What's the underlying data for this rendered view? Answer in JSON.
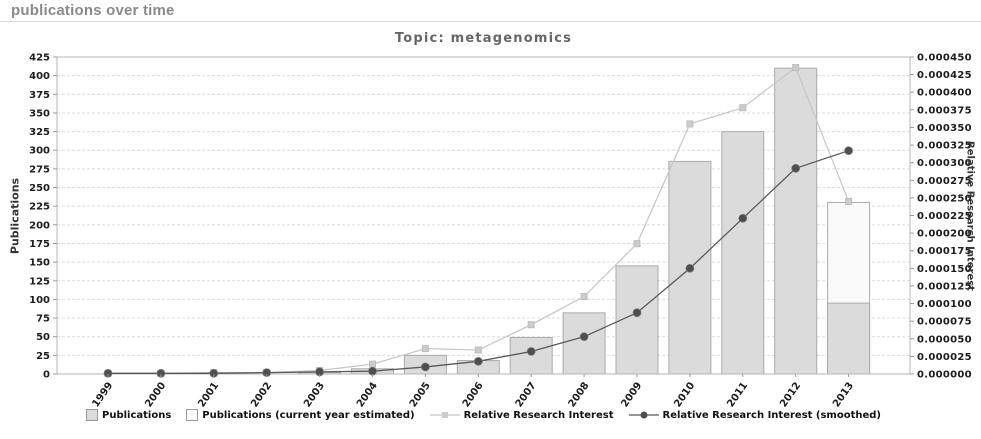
{
  "header": {
    "title": "publications over time"
  },
  "chart": {
    "left_axis": {
      "label": "Publications",
      "min": 0,
      "max": 425,
      "step": 25
    },
    "right_axis": {
      "label": "Relative Research Interest",
      "min": 0,
      "max": 0.00045,
      "step": 2.5e-05,
      "decimals": 6
    },
    "colors": {
      "grid": "#dcdcdc",
      "plot_border": "#b5b5b5",
      "bar": "#dbdbdb",
      "bar_estimated": "#f9f9f9",
      "bar_border": "#ababab",
      "rri_line": "#c6c6c6",
      "rri_marker": "#cccccc",
      "rri_marker_border": "#bdbdbd",
      "smoothed_line": "#585858",
      "smoothed_marker": "#4f4f4f",
      "smoothed_marker_border": "#7a7a7a",
      "tick": "#999999",
      "tick_label": "#1c1c1c",
      "title": "#666666",
      "header_text": "#8a8a8a"
    },
    "legend": [
      {
        "label": "Publications",
        "type": "bar",
        "color": "#dbdbdb",
        "border": "#999999"
      },
      {
        "label": "Publications (current year estimated)",
        "type": "bar",
        "color": "#fbfbfb",
        "border": "#999999"
      },
      {
        "label": "Relative Research Interest",
        "type": "line-square",
        "color": "#c6c6c6",
        "marker": "#cccccc"
      },
      {
        "label": "Relative Research Interest (smoothed)",
        "type": "line-circle",
        "color": "#585858",
        "marker": "#4f4f4f"
      }
    ]
  },
  "chart_data": {
    "type": "bar",
    "title": "Topic: metagenomics",
    "categories": [
      "1999",
      "2000",
      "2001",
      "2002",
      "2003",
      "2004",
      "2005",
      "2006",
      "2007",
      "2008",
      "2009",
      "2010",
      "2011",
      "2012",
      "2013"
    ],
    "series": [
      {
        "name": "Publications",
        "type": "bar",
        "axis": "left",
        "values": [
          0,
          0,
          0,
          0,
          2,
          7,
          25,
          18,
          49,
          82,
          145,
          285,
          325,
          410,
          95
        ]
      },
      {
        "name": "Publications (current year estimated)",
        "type": "bar",
        "axis": "left",
        "values": [
          null,
          null,
          null,
          null,
          null,
          null,
          null,
          null,
          null,
          null,
          null,
          null,
          null,
          null,
          230
        ]
      },
      {
        "name": "Relative Research Interest",
        "type": "line",
        "axis": "right",
        "values": [
          1e-06,
          1e-06,
          2e-06,
          2e-06,
          5e-06,
          1.4e-05,
          3.6e-05,
          3.4e-05,
          7e-05,
          0.00011,
          0.000185,
          0.000355,
          0.000378,
          0.000435,
          0.000245
        ]
      },
      {
        "name": "Relative Research Interest (smoothed)",
        "type": "line",
        "axis": "right",
        "values": [
          1e-06,
          1e-06,
          1e-06,
          2e-06,
          3e-06,
          4e-06,
          1e-05,
          1.8e-05,
          3.2e-05,
          5.3e-05,
          8.7e-05,
          0.00015,
          0.000221,
          0.000292,
          0.000317
        ]
      }
    ],
    "xlabel": "",
    "ylabel_left": "Publications",
    "ylabel_right": "Relative Research Interest",
    "ylim_left": [
      0,
      425
    ],
    "ylim_right": [
      0,
      0.00045
    ],
    "grid": "horizontal-dashed",
    "legend_position": "bottom"
  }
}
